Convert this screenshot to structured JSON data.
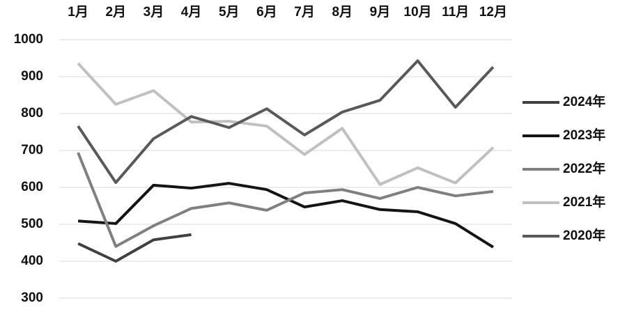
{
  "chart_data": {
    "type": "line",
    "categories": [
      "1月",
      "2月",
      "3月",
      "4月",
      "5月",
      "6月",
      "7月",
      "8月",
      "9月",
      "10月",
      "11月",
      "12月"
    ],
    "series": [
      {
        "name": "2024年",
        "color": "#404040",
        "values": [
          448,
          400,
          458,
          472,
          null,
          null,
          null,
          null,
          null,
          null,
          null,
          null
        ]
      },
      {
        "name": "2023年",
        "color": "#141414",
        "values": [
          509,
          502,
          606,
          598,
          611,
          594,
          547,
          564,
          540,
          534,
          502,
          438
        ]
      },
      {
        "name": "2022年",
        "color": "#808080",
        "values": [
          694,
          440,
          496,
          543,
          558,
          538,
          585,
          594,
          570,
          600,
          577,
          589
        ]
      },
      {
        "name": "2021年",
        "color": "#c0c0c0",
        "values": [
          936,
          825,
          862,
          777,
          779,
          766,
          689,
          760,
          608,
          653,
          612,
          708
        ]
      },
      {
        "name": "2020年",
        "color": "#595959",
        "values": [
          766,
          613,
          732,
          792,
          762,
          813,
          742,
          804,
          836,
          943,
          817,
          926
        ]
      }
    ],
    "ylim": [
      300,
      1000
    ],
    "yticks": [
      300,
      400,
      500,
      600,
      700,
      800,
      900,
      1000
    ],
    "grid": true,
    "legend": "right"
  }
}
